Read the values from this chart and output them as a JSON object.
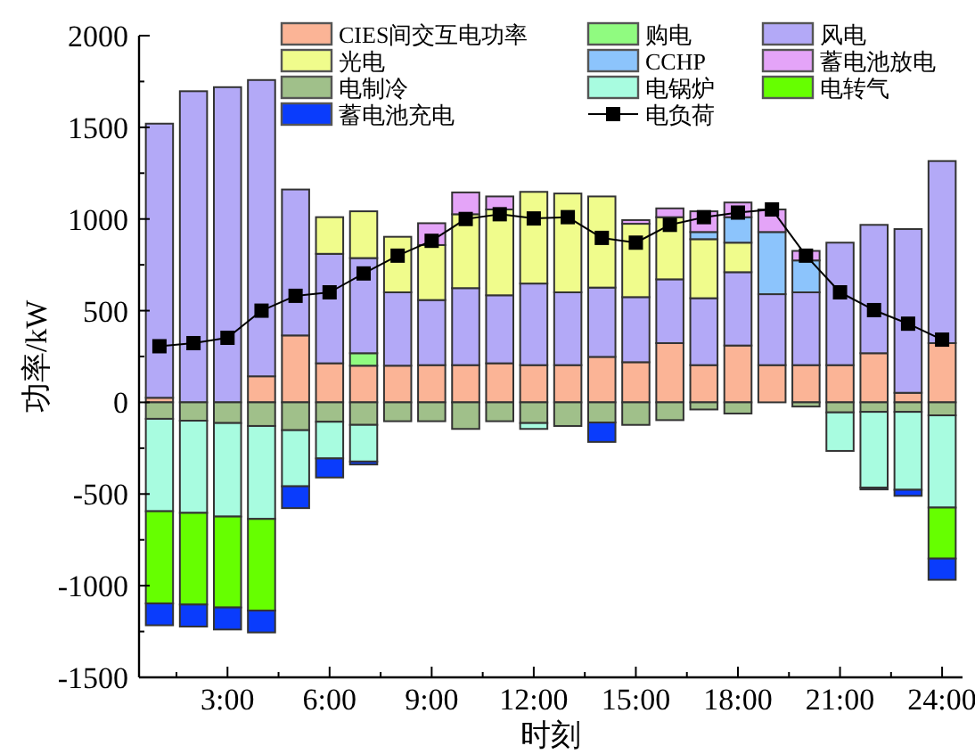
{
  "chart_data": {
    "type": "bar",
    "stacked": true,
    "xlabel": "时刻",
    "ylabel": "功率/kW",
    "legend": "top",
    "grid": false,
    "x": [
      1,
      2,
      3,
      4,
      5,
      6,
      7,
      8,
      9,
      10,
      11,
      12,
      13,
      14,
      15,
      16,
      17,
      18,
      19,
      20,
      21,
      22,
      23,
      24
    ],
    "xlim": [
      0.4,
      24.6
    ],
    "xticks": [
      {
        "value": 1.5,
        "label": null
      },
      {
        "value": 3,
        "label": "3:00"
      },
      {
        "value": 4.5,
        "label": null
      },
      {
        "value": 6,
        "label": "6:00"
      },
      {
        "value": 7.5,
        "label": null
      },
      {
        "value": 9,
        "label": "9:00"
      },
      {
        "value": 10.5,
        "label": null
      },
      {
        "value": 12,
        "label": "12:00"
      },
      {
        "value": 13.5,
        "label": null
      },
      {
        "value": 15,
        "label": "15:00"
      },
      {
        "value": 16.5,
        "label": null
      },
      {
        "value": 18,
        "label": "18:00"
      },
      {
        "value": 19.5,
        "label": null
      },
      {
        "value": 21,
        "label": "21:00"
      },
      {
        "value": 22.5,
        "label": null
      },
      {
        "value": 24,
        "label": "24:00"
      }
    ],
    "ylim": [
      -1500,
      2000
    ],
    "yticks": [
      -1500,
      {
        "value": -1250,
        "label": null
      },
      -1000,
      {
        "value": -750,
        "label": null
      },
      -500,
      {
        "value": -250,
        "label": null
      },
      0,
      {
        "value": 250,
        "label": null
      },
      500,
      {
        "value": 750,
        "label": null
      },
      1000,
      {
        "value": 1250,
        "label": null
      },
      1500,
      {
        "value": 1750,
        "label": null
      },
      2000
    ],
    "series": [
      {
        "name": "CIES间交互电功率",
        "color": "#fbb496",
        "values": [
          25,
          0,
          0,
          142,
          365,
          213,
          200,
          200,
          203,
          203,
          213,
          203,
          203,
          248,
          219,
          323,
          203,
          310,
          203,
          203,
          203,
          268,
          52,
          323
        ]
      },
      {
        "name": "购电",
        "color": "#90fb80",
        "values": [
          0,
          0,
          0,
          0,
          0,
          0,
          68,
          0,
          0,
          0,
          0,
          0,
          0,
          0,
          0,
          0,
          0,
          0,
          0,
          0,
          0,
          0,
          0,
          0
        ]
      },
      {
        "name": "风电",
        "color": "#b3a9f7",
        "values": [
          1495,
          1697,
          1719,
          1616,
          796,
          597,
          519,
          400,
          355,
          420,
          371,
          445,
          397,
          378,
          355,
          348,
          365,
          400,
          387,
          397,
          668,
          700,
          893,
          993
        ]
      },
      {
        "name": "光电",
        "color": "#f0fc8c",
        "values": [
          0,
          0,
          0,
          0,
          0,
          200,
          255,
          303,
          300,
          403,
          468,
          500,
          539,
          497,
          400,
          339,
          322,
          161,
          0,
          0,
          0,
          0,
          0,
          0
        ]
      },
      {
        "name": "CCHP",
        "color": "#8cc4fc",
        "values": [
          0,
          0,
          0,
          0,
          0,
          0,
          0,
          0,
          0,
          0,
          0,
          0,
          0,
          0,
          0,
          0,
          39,
          139,
          339,
          174,
          0,
          0,
          0,
          0
        ]
      },
      {
        "name": "蓄电池放电",
        "color": "#e4a4f8",
        "values": [
          0,
          0,
          0,
          0,
          0,
          0,
          0,
          0,
          119,
          119,
          71,
          0,
          0,
          0,
          20,
          48,
          113,
          80,
          123,
          52,
          0,
          0,
          0,
          0
        ]
      },
      {
        "name": "电制冷",
        "color": "#a0c08a",
        "values": [
          -90,
          -100,
          -113,
          -129,
          -152,
          -106,
          -123,
          -103,
          -103,
          -145,
          -103,
          -113,
          -129,
          -110,
          -123,
          -97,
          -39,
          -61,
          0,
          -23,
          -55,
          -52,
          -52,
          -71
        ]
      },
      {
        "name": "电锅炉",
        "color": "#a8fce0",
        "values": [
          -504,
          -503,
          -510,
          -507,
          -306,
          -200,
          -200,
          0,
          0,
          0,
          0,
          -32,
          0,
          0,
          0,
          0,
          0,
          0,
          0,
          0,
          -210,
          -413,
          -425,
          -503
        ]
      },
      {
        "name": "电转气",
        "color": "#66ff00",
        "values": [
          -503,
          -500,
          -496,
          -500,
          0,
          0,
          0,
          0,
          0,
          0,
          0,
          0,
          0,
          0,
          0,
          0,
          0,
          0,
          0,
          0,
          0,
          0,
          0,
          -278
        ]
      },
      {
        "name": "蓄电池充电",
        "color": "#0a3cfc",
        "values": [
          -119,
          -120,
          -120,
          -119,
          -119,
          -104,
          -16,
          0,
          0,
          0,
          0,
          0,
          0,
          -106,
          0,
          0,
          0,
          0,
          0,
          0,
          0,
          -10,
          -33,
          -116
        ]
      },
      {
        "name": "电负荷",
        "type": "line",
        "color": "#000000",
        "marker": "square",
        "line_style": "solid",
        "values": [
          306,
          323,
          352,
          500,
          581,
          600,
          703,
          800,
          881,
          1000,
          1026,
          1003,
          1010,
          897,
          871,
          968,
          1010,
          1035,
          1052,
          800,
          600,
          503,
          429,
          342
        ]
      }
    ]
  }
}
